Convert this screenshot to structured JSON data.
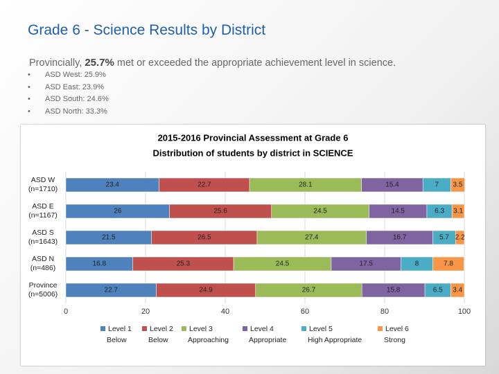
{
  "slide_title": "Grade 6 - Science Results by District",
  "summary": {
    "intro": "Provincially,",
    "highlight": "25.7%",
    "rest": "met or exceeded the appropriate achievement level in science."
  },
  "bullets": [
    "ASD West: 25.9%",
    "ASD East: 23.9%",
    "ASD South: 24.6%",
    "ASD North: 33.3%"
  ],
  "chart_data": {
    "type": "stacked-barh",
    "title": "2015-2016 Provincial Assessment at Grade 6",
    "subtitle": "Distribution of students by district in SCIENCE",
    "categories": [
      "ASD W (n=1710)",
      "ASD E (n=1167)",
      "ASD S (n=1643)",
      "ASD N (n=486)",
      "Province (n=5006)"
    ],
    "series": [
      {
        "name": "Level 1",
        "description": "Below",
        "color": "#4f81bd",
        "values": [
          23.4,
          26,
          21.5,
          16.8,
          22.7
        ]
      },
      {
        "name": "Level 2",
        "description": "Below",
        "color": "#c0504d",
        "values": [
          22.7,
          25.6,
          26.5,
          25.3,
          24.9
        ]
      },
      {
        "name": "Level 3",
        "description": "Approaching",
        "color": "#9bbb59",
        "values": [
          28.1,
          24.5,
          27.4,
          24.5,
          26.7
        ]
      },
      {
        "name": "Level 4",
        "description": "Appropriate",
        "color": "#8064a2",
        "values": [
          15.4,
          14.5,
          16.7,
          17.5,
          15.8
        ]
      },
      {
        "name": "Level 5",
        "description": "High Appropriate",
        "color": "#4bacc6",
        "values": [
          7,
          6.3,
          5.7,
          8,
          6.5
        ]
      },
      {
        "name": "Level 6",
        "description": "Strong",
        "color": "#f79646",
        "values": [
          3.5,
          3.1,
          2.2,
          7.8,
          3.4
        ]
      }
    ],
    "xlim": [
      0,
      100
    ],
    "xticks": [
      0,
      20,
      40,
      60,
      80,
      100
    ],
    "grid": true
  }
}
